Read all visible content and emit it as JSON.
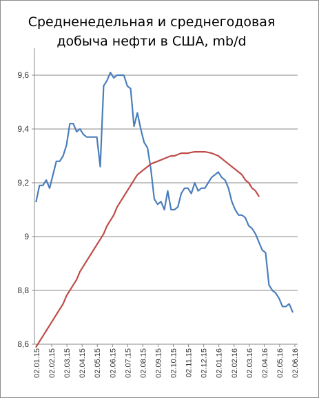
{
  "chart_data": {
    "type": "line",
    "title_lines": [
      "Средненедельная и среднегодовая",
      "добыча нефти в США, mb/d"
    ],
    "xlabel": "",
    "ylabel": "",
    "ylim": [
      8.6,
      9.7
    ],
    "y_ticks": [
      "8,6",
      "8,8",
      "9",
      "9,2",
      "9,4",
      "9,6"
    ],
    "y_tick_values": [
      8.6,
      8.8,
      9.0,
      9.2,
      9.4,
      9.6
    ],
    "grid": true,
    "legend": "none",
    "x_tick_labels": [
      "02.01.15",
      "02.02.15",
      "02.03.15",
      "02.04.15",
      "02.05.15",
      "02.06.15",
      "02.07.15",
      "02.08.15",
      "02.09.15",
      "02.10.15",
      "02.11.15",
      "02.12.15",
      "02.01.16",
      "02.02.16",
      "02.03.16",
      "02.04.16",
      "02.05.16",
      "02.06.16"
    ],
    "weeks_count": 78,
    "series": [
      {
        "color": "#4a7ebb",
        "values": [
          9.13,
          9.19,
          9.19,
          9.21,
          9.18,
          9.23,
          9.28,
          9.28,
          9.3,
          9.34,
          9.42,
          9.42,
          9.39,
          9.4,
          9.38,
          9.37,
          9.37,
          9.37,
          9.37,
          9.26,
          9.56,
          9.58,
          9.61,
          9.59,
          9.6,
          9.6,
          9.6,
          9.56,
          9.55,
          9.41,
          9.46,
          9.4,
          9.35,
          9.33,
          9.25,
          9.14,
          9.12,
          9.13,
          9.1,
          9.17,
          9.1,
          9.1,
          9.11,
          9.16,
          9.18,
          9.18,
          9.16,
          9.2,
          9.17,
          9.18,
          9.18,
          9.2,
          9.22,
          9.23,
          9.24,
          9.22,
          9.21,
          9.18,
          9.13,
          9.1,
          9.08,
          9.08,
          9.07,
          9.04,
          9.03,
          9.01,
          8.98,
          8.95,
          8.94,
          8.82,
          8.8,
          8.79,
          8.77,
          8.74,
          8.74,
          8.75,
          8.72
        ]
      },
      {
        "color": "#be4b48",
        "values": [
          8.59,
          8.61,
          8.63,
          8.65,
          8.67,
          8.69,
          8.71,
          8.73,
          8.75,
          8.78,
          8.8,
          8.82,
          8.84,
          8.87,
          8.89,
          8.91,
          8.93,
          8.95,
          8.97,
          8.99,
          9.01,
          9.04,
          9.06,
          9.08,
          9.11,
          9.13,
          9.15,
          9.17,
          9.19,
          9.21,
          9.23,
          9.24,
          9.25,
          9.26,
          9.27,
          9.275,
          9.28,
          9.285,
          9.29,
          9.295,
          9.3,
          9.3,
          9.305,
          9.31,
          9.31,
          9.31,
          9.313,
          9.315,
          9.315,
          9.315,
          9.315,
          9.313,
          9.31,
          9.305,
          9.3,
          9.29,
          9.28,
          9.27,
          9.26,
          9.25,
          9.24,
          9.23,
          9.21,
          9.2,
          9.18,
          9.17,
          9.15
        ]
      }
    ]
  }
}
